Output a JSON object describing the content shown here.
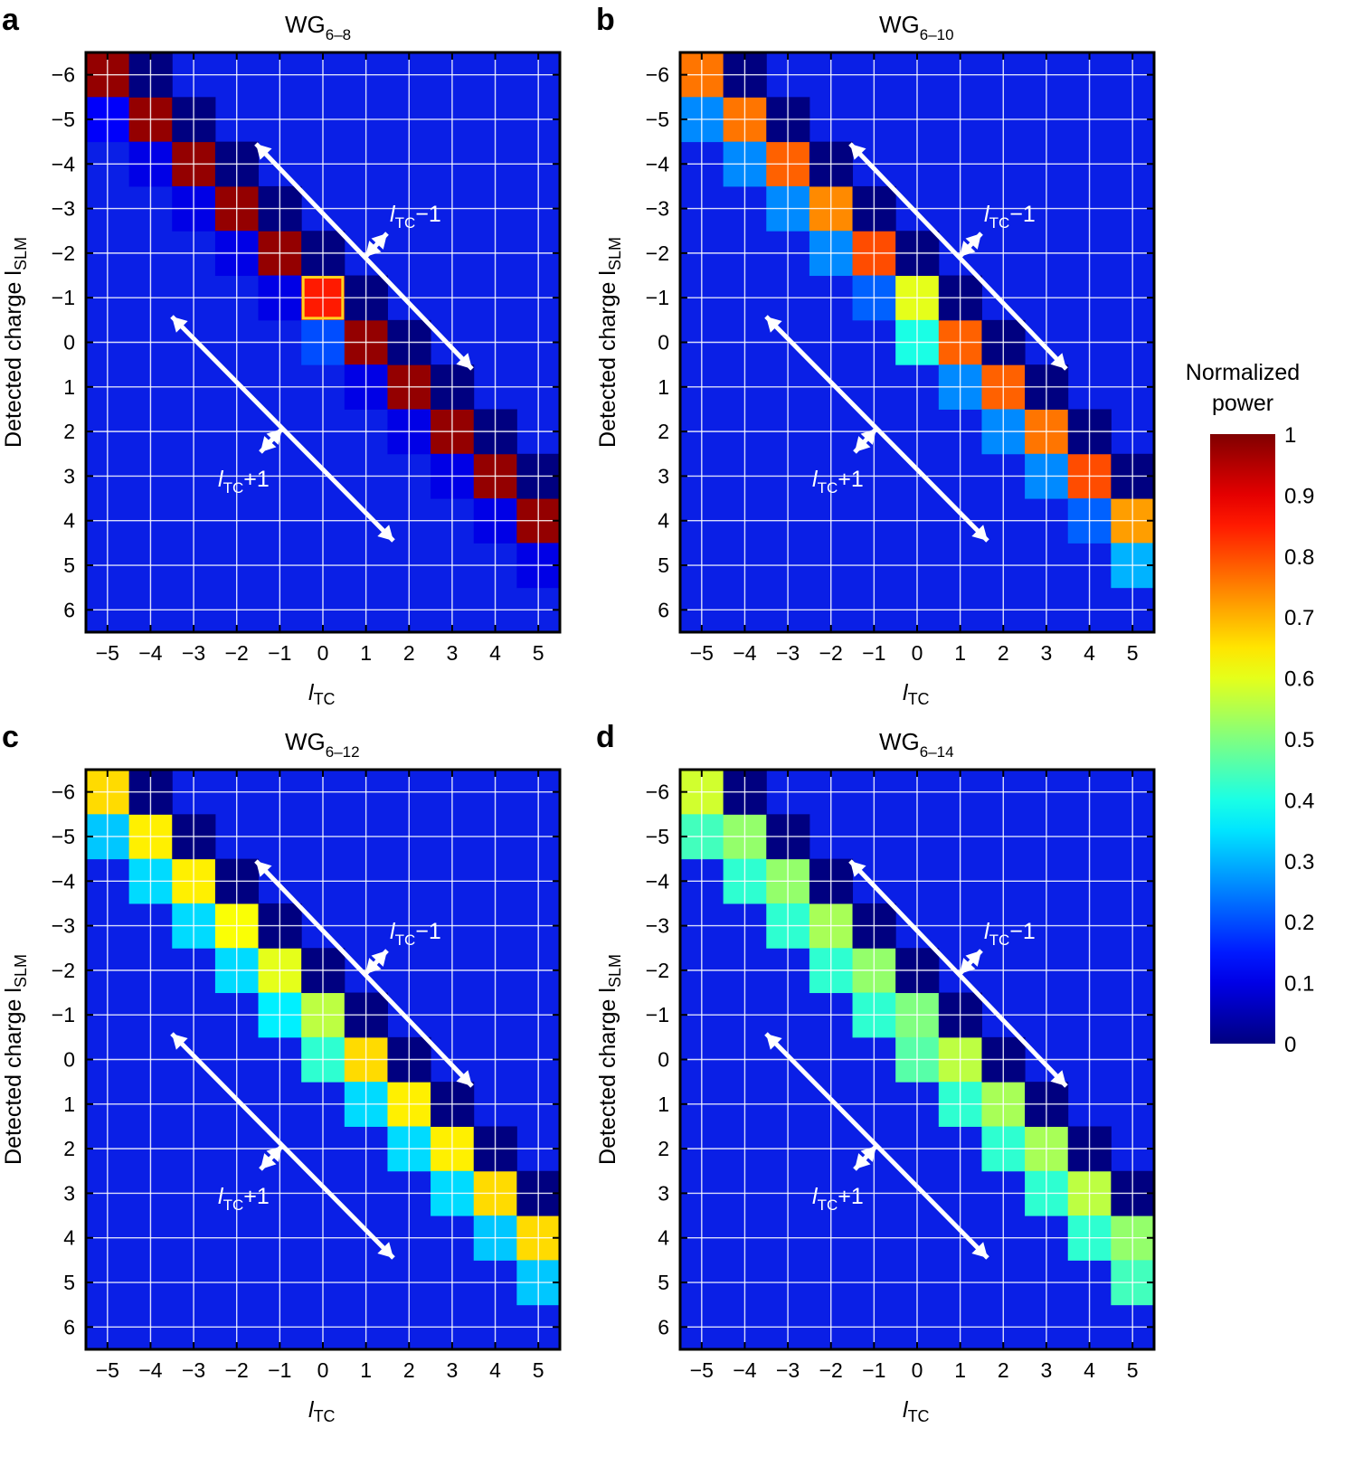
{
  "chart_data": [
    {
      "type": "heatmap",
      "panel_label": "a",
      "title": "WG",
      "title_sub": "6–8",
      "xlabel": "l",
      "xlabel_sub": "TC",
      "ylabel": "Detected charge l",
      "ylabel_sub": "SLM",
      "x": [
        -5,
        -4,
        -3,
        -2,
        -1,
        0,
        1,
        2,
        3,
        4,
        5
      ],
      "y": [
        -6,
        -5,
        -4,
        -3,
        -2,
        -1,
        0,
        1,
        2,
        3,
        4,
        5,
        6
      ],
      "x_tick_labels": [
        "−5",
        "−4",
        "−3",
        "−2",
        "−1",
        "0",
        "1",
        "2",
        "3",
        "4",
        "5"
      ],
      "y_tick_labels": [
        "−6",
        "−5",
        "−4",
        "−3",
        "−2",
        "−1",
        "0",
        "1",
        "2",
        "3",
        "4",
        "5",
        "6"
      ],
      "main_diagonal": [
        0.98,
        0.98,
        0.98,
        0.98,
        0.98,
        0.85,
        0.98,
        0.98,
        0.98,
        0.98,
        0.98
      ],
      "upper_diagonal": [
        0.0,
        0.0,
        0.0,
        0.0,
        0.0,
        0.0,
        0.0,
        0.0,
        0.0,
        0.0,
        0.0
      ],
      "lower_diagonal": [
        0.12,
        0.1,
        0.1,
        0.1,
        0.1,
        0.2,
        0.1,
        0.1,
        0.1,
        0.1,
        0.1
      ],
      "highlight_cell": {
        "x": 0,
        "y": -1
      },
      "arrow_label_upper": "l",
      "arrow_label_upper_sub": "TC",
      "arrow_label_upper_suffix": "−1",
      "arrow_label_lower": "l",
      "arrow_label_lower_sub": "TC",
      "arrow_label_lower_suffix": "+1"
    },
    {
      "type": "heatmap",
      "panel_label": "b",
      "title": "WG",
      "title_sub": "6–10",
      "xlabel": "l",
      "xlabel_sub": "TC",
      "ylabel": "Detected charge l",
      "ylabel_sub": "SLM",
      "x": [
        -5,
        -4,
        -3,
        -2,
        -1,
        0,
        1,
        2,
        3,
        4,
        5
      ],
      "y": [
        -6,
        -5,
        -4,
        -3,
        -2,
        -1,
        0,
        1,
        2,
        3,
        4,
        5,
        6
      ],
      "x_tick_labels": [
        "−5",
        "−4",
        "−3",
        "−2",
        "−1",
        "0",
        "1",
        "2",
        "3",
        "4",
        "5"
      ],
      "y_tick_labels": [
        "−6",
        "−5",
        "−4",
        "−3",
        "−2",
        "−1",
        "0",
        "1",
        "2",
        "3",
        "4",
        "5",
        "6"
      ],
      "main_diagonal": [
        0.76,
        0.76,
        0.78,
        0.74,
        0.8,
        0.6,
        0.78,
        0.78,
        0.76,
        0.8,
        0.72
      ],
      "upper_diagonal": [
        0.0,
        0.0,
        0.0,
        0.0,
        0.0,
        0.0,
        0.0,
        0.0,
        0.0,
        0.0,
        0.0
      ],
      "lower_diagonal": [
        0.26,
        0.26,
        0.26,
        0.26,
        0.22,
        0.4,
        0.26,
        0.26,
        0.26,
        0.22,
        0.3
      ],
      "arrow_label_upper": "l",
      "arrow_label_upper_sub": "TC",
      "arrow_label_upper_suffix": "−1",
      "arrow_label_lower": "l",
      "arrow_label_lower_sub": "TC",
      "arrow_label_lower_suffix": "+1"
    },
    {
      "type": "heatmap",
      "panel_label": "c",
      "title": "WG",
      "title_sub": "6–12",
      "xlabel": "l",
      "xlabel_sub": "TC",
      "ylabel": "Detected charge l",
      "ylabel_sub": "SLM",
      "x": [
        -5,
        -4,
        -3,
        -2,
        -1,
        0,
        1,
        2,
        3,
        4,
        5
      ],
      "y": [
        -6,
        -5,
        -4,
        -3,
        -2,
        -1,
        0,
        1,
        2,
        3,
        4,
        5,
        6
      ],
      "x_tick_labels": [
        "−5",
        "−4",
        "−3",
        "−2",
        "−1",
        "0",
        "1",
        "2",
        "3",
        "4",
        "5"
      ],
      "y_tick_labels": [
        "−6",
        "−5",
        "−4",
        "−3",
        "−2",
        "−1",
        "0",
        "1",
        "2",
        "3",
        "4",
        "5",
        "6"
      ],
      "main_diagonal": [
        0.66,
        0.64,
        0.64,
        0.62,
        0.6,
        0.56,
        0.66,
        0.64,
        0.64,
        0.66,
        0.66
      ],
      "upper_diagonal": [
        0.0,
        0.0,
        0.0,
        0.0,
        0.0,
        0.0,
        0.0,
        0.0,
        0.0,
        0.0,
        0.0
      ],
      "lower_diagonal": [
        0.32,
        0.34,
        0.34,
        0.34,
        0.36,
        0.42,
        0.34,
        0.34,
        0.34,
        0.32,
        0.32
      ],
      "arrow_label_upper": "l",
      "arrow_label_upper_sub": "TC",
      "arrow_label_upper_suffix": "−1",
      "arrow_label_lower": "l",
      "arrow_label_lower_sub": "TC",
      "arrow_label_lower_suffix": "+1"
    },
    {
      "type": "heatmap",
      "panel_label": "d",
      "title": "WG",
      "title_sub": "6–14",
      "xlabel": "l",
      "xlabel_sub": "TC",
      "ylabel": "Detected charge l",
      "ylabel_sub": "SLM",
      "x": [
        -5,
        -4,
        -3,
        -2,
        -1,
        0,
        1,
        2,
        3,
        4,
        5
      ],
      "y": [
        -6,
        -5,
        -4,
        -3,
        -2,
        -1,
        0,
        1,
        2,
        3,
        4,
        5,
        6
      ],
      "x_tick_labels": [
        "−5",
        "−4",
        "−3",
        "−2",
        "−1",
        "0",
        "1",
        "2",
        "3",
        "4",
        "5"
      ],
      "y_tick_labels": [
        "−6",
        "−5",
        "−4",
        "−3",
        "−2",
        "−1",
        "0",
        "1",
        "2",
        "3",
        "4",
        "5",
        "6"
      ],
      "main_diagonal": [
        0.58,
        0.52,
        0.52,
        0.54,
        0.52,
        0.5,
        0.56,
        0.54,
        0.54,
        0.56,
        0.52
      ],
      "upper_diagonal": [
        0.0,
        0.0,
        0.0,
        0.0,
        0.0,
        0.0,
        0.0,
        0.0,
        0.0,
        0.0,
        0.0
      ],
      "lower_diagonal": [
        0.44,
        0.42,
        0.42,
        0.42,
        0.42,
        0.46,
        0.42,
        0.42,
        0.42,
        0.42,
        0.44
      ],
      "arrow_label_upper": "l",
      "arrow_label_upper_sub": "TC",
      "arrow_label_upper_suffix": "−1",
      "arrow_label_lower": "l",
      "arrow_label_lower_sub": "TC",
      "arrow_label_lower_suffix": "+1"
    }
  ],
  "colorbar": {
    "title_line1": "Normalized",
    "title_line2": "power",
    "range": [
      0,
      1
    ],
    "tick_labels": [
      "1",
      "0.9",
      "0.8",
      "0.7",
      "0.6",
      "0.5",
      "0.4",
      "0.3",
      "0.2",
      "0.1",
      "0"
    ],
    "tick_values": [
      1,
      0.9,
      0.8,
      0.7,
      0.6,
      0.5,
      0.4,
      0.3,
      0.2,
      0.1,
      0
    ],
    "colormap": "jet"
  },
  "colors": {
    "background_cell": "#0a1fe6",
    "grid": "#ffffff",
    "highlight": "#ffd21e",
    "arrow": "#ffffff"
  }
}
